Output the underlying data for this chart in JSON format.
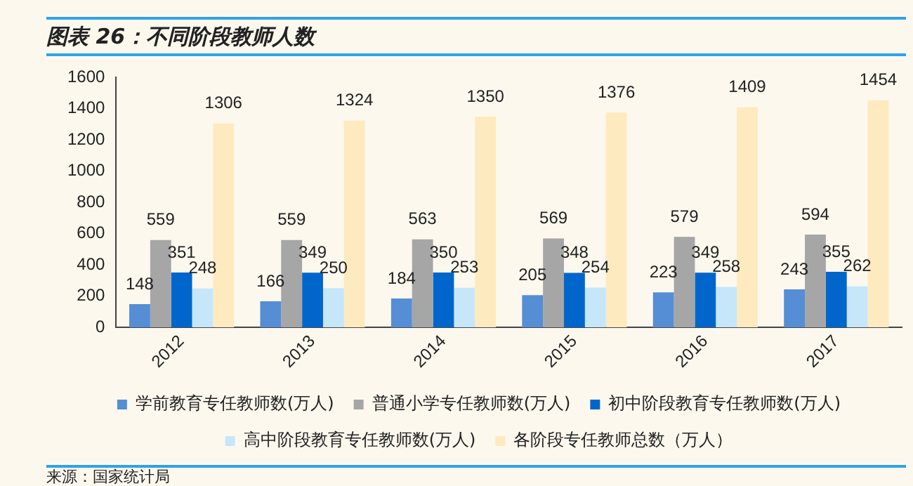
{
  "chart_data": {
    "type": "bar",
    "title": "图表 26：不同阶段教师人数",
    "categories": [
      "2012",
      "2013",
      "2014",
      "2015",
      "2016",
      "2017"
    ],
    "series": [
      {
        "name": "学前教育专任教师数(万人)",
        "color": "#558ed5",
        "values": [
          148,
          166,
          184,
          205,
          223,
          243
        ]
      },
      {
        "name": "普通小学专任教师数(万人)",
        "color": "#a6a6a6",
        "values": [
          559,
          559,
          563,
          569,
          579,
          594
        ]
      },
      {
        "name": "初中阶段教育专任教师数(万人)",
        "color": "#0066cc",
        "values": [
          351,
          349,
          350,
          348,
          349,
          355
        ]
      },
      {
        "name": "高中阶段教育专任教师数(万人)",
        "color": "#c6e6fa",
        "values": [
          248,
          250,
          253,
          254,
          258,
          262
        ]
      },
      {
        "name": "各阶段专任教师总数（万人）",
        "color": "#fdeabf",
        "values": [
          1306,
          1324,
          1350,
          1376,
          1409,
          1454
        ]
      }
    ],
    "ylim": [
      0,
      1600
    ],
    "yticks": [
      0,
      200,
      400,
      600,
      800,
      1000,
      1200,
      1400,
      1600
    ],
    "grid": false,
    "legend": "bottom",
    "data_labels": true,
    "annotations": [
      "来源：国家统计局"
    ]
  }
}
